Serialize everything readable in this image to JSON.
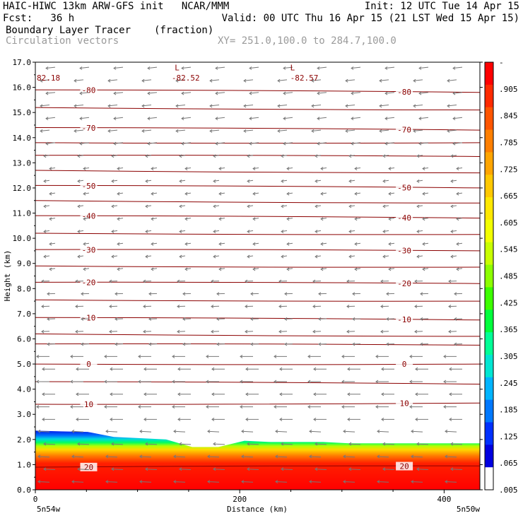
{
  "header": {
    "line1_left": "HAIC-HIWC 13km ARW-GFS init   NCAR/MMM",
    "line1_right": "Init: 12 UTC Tue 14 Apr 15",
    "line2_left": "Fcst:   36 h",
    "line2_right": "Valid: 00 UTC Thu 16 Apr 15 (21 LST Wed 15 Apr 15)",
    "line3_left": "Boundary Layer Tracer",
    "line3_units": "(fraction)",
    "line4_left": "Circulation vectors",
    "line4_xy": "XY= 251.0,100.0 to 284.7,100.0"
  },
  "chart_data": {
    "type": "heatmap",
    "ylabel": "Height (km)",
    "xlabel": "Distance (km)",
    "xlim": [
      0,
      435
    ],
    "ylim": [
      0,
      17
    ],
    "x_ticks": [
      "0",
      "200",
      "400"
    ],
    "y_ticks": [
      "0.0",
      "1.0",
      "2.0",
      "3.0",
      "4.0",
      "5.0",
      "6.0",
      "7.0",
      "8.0",
      "9.0",
      "10.0",
      "11.0",
      "12.0",
      "13.0",
      "14.0",
      "15.0",
      "16.0",
      "17.0"
    ],
    "left_endpoint": "5n54w",
    "right_endpoint": "5n50w",
    "colorbar": {
      "labels": [
        "-",
        ".905",
        ".845",
        ".785",
        ".725",
        ".665",
        ".605",
        ".545",
        ".485",
        ".425",
        ".365",
        ".305",
        ".245",
        ".185",
        ".125",
        ".065",
        ".005"
      ],
      "colors": [
        "#ff0000",
        "#ff2a00",
        "#ff5500",
        "#ff7f00",
        "#ffa500",
        "#ffc800",
        "#ffe800",
        "#f2ff00",
        "#c8ff00",
        "#8cff00",
        "#3cff00",
        "#00ff3c",
        "#00ff96",
        "#00e6d2",
        "#00b4ff",
        "#0078ff",
        "#0030ff",
        "#0000e0",
        "#ffffff"
      ]
    },
    "tracer_top_km": [
      2.35,
      2.32,
      2.3,
      2.1,
      2.05,
      2.0,
      1.7,
      1.7,
      1.95,
      1.9,
      1.9,
      1.9,
      1.85,
      1.85,
      1.85,
      1.85,
      1.85,
      1.85
    ],
    "contours": [
      {
        "label": "-80",
        "level": -80,
        "y_left": 15.9,
        "y_right": 15.8
      },
      {
        "level": -75,
        "y_left": 15.2,
        "y_right": 15.1
      },
      {
        "label": "-70",
        "level": -70,
        "y_left": 14.4,
        "y_right": 14.3
      },
      {
        "level": -65,
        "y_left": 13.8,
        "y_right": 13.8
      },
      {
        "level": -60,
        "y_left": 13.3,
        "y_right": 13.25
      },
      {
        "level": -55,
        "y_left": 12.7,
        "y_right": 12.6
      },
      {
        "label": "-50",
        "level": -50,
        "y_left": 12.1,
        "y_right": 12.0
      },
      {
        "level": -45,
        "y_left": 11.5,
        "y_right": 11.4
      },
      {
        "label": "-40",
        "level": -40,
        "y_left": 10.9,
        "y_right": 10.8
      },
      {
        "level": -35,
        "y_left": 10.2,
        "y_right": 10.15
      },
      {
        "label": "-30",
        "level": -30,
        "y_left": 9.55,
        "y_right": 9.5
      },
      {
        "level": -25,
        "y_left": 8.9,
        "y_right": 8.85
      },
      {
        "label": "-20",
        "level": -20,
        "y_left": 8.25,
        "y_right": 8.2
      },
      {
        "level": -15,
        "y_left": 7.55,
        "y_right": 7.5
      },
      {
        "label": "-10",
        "level": -10,
        "y_left": 6.85,
        "y_right": 6.75
      },
      {
        "level": -5,
        "y_left": 6.2,
        "y_right": 6.1
      },
      {
        "level": -2.5,
        "y_left": 5.8,
        "y_right": 5.75
      },
      {
        "label": "0",
        "level": 0,
        "y_left": 5.0,
        "y_right": 5.0
      },
      {
        "level": 5,
        "y_left": 4.3,
        "y_right": 4.2
      },
      {
        "label": "10",
        "level": 10,
        "y_left": 3.4,
        "y_right": 3.45
      },
      {
        "label": "20",
        "level": 20,
        "y_left": 0.9,
        "y_right": 0.95
      }
    ],
    "annotations": [
      {
        "text": "L",
        "x_km": 135,
        "y_km": 16.9
      },
      {
        "text": "-82.52",
        "x_km": 132,
        "y_km": 16.5
      },
      {
        "text": "L",
        "x_km": 248,
        "y_km": 16.9
      },
      {
        "text": "-82.57",
        "x_km": 248,
        "y_km": 16.5
      },
      {
        "text": "82.18",
        "x_km": 0,
        "y_km": 16.5
      }
    ]
  }
}
